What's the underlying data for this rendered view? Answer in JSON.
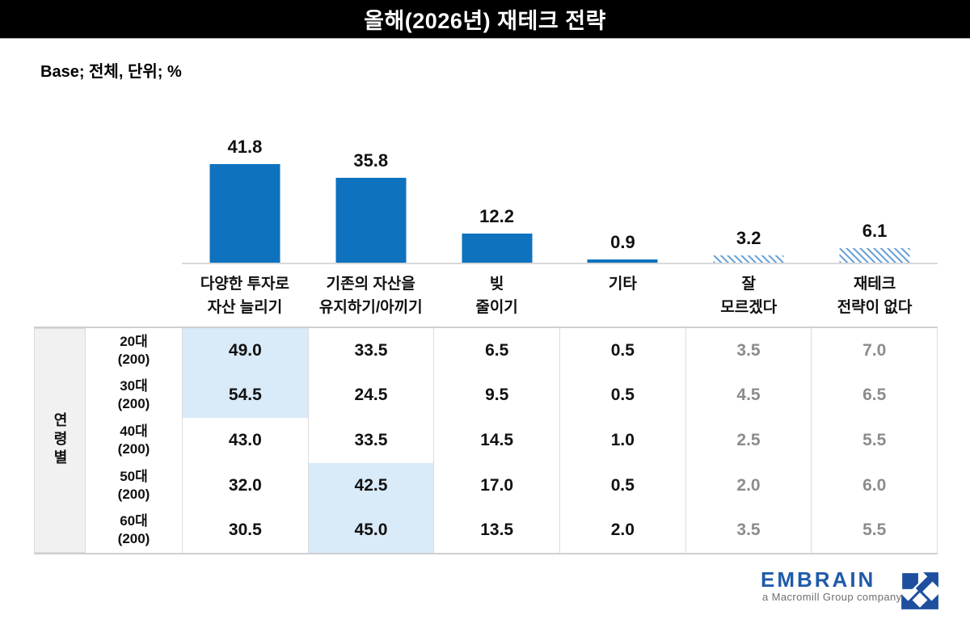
{
  "title": "올해(2026년) 재테크 전략",
  "base_note": "Base; 전체, 단위; %",
  "colors": {
    "bar": "#0e72be",
    "hatch_stripe": "#6fa3d6",
    "highlight_cell": "#d9eaf8",
    "muted_text": "#8c8c8c",
    "brand_blue": "#1f5ba9",
    "title_bar_bg": "#000000"
  },
  "chart_data": {
    "type": "bar",
    "title": "올해(2026년) 재테크 전략",
    "unit": "%",
    "base": "전체",
    "grid": false,
    "ylim": [
      0,
      50
    ],
    "categories": [
      "다양한 투자로\n자산 늘리기",
      "기존의 자산을\n유지하기/아끼기",
      "빚\n줄이기",
      "기타",
      "잘\n모르겠다",
      "재테크\n전략이 없다"
    ],
    "values": [
      41.8,
      35.8,
      12.2,
      0.9,
      3.2,
      6.1
    ],
    "hatched": [
      false,
      false,
      false,
      false,
      true,
      true
    ],
    "breakdown": {
      "group_label": "연령별",
      "muted_columns": [
        4,
        5
      ],
      "rows": [
        {
          "label": "20대",
          "base": "(200)",
          "values": [
            "49.0",
            "33.5",
            "6.5",
            "0.5",
            "3.5",
            "7.0"
          ],
          "highlight_cols": [
            0
          ]
        },
        {
          "label": "30대",
          "base": "(200)",
          "values": [
            "54.5",
            "24.5",
            "9.5",
            "0.5",
            "4.5",
            "6.5"
          ],
          "highlight_cols": [
            0
          ]
        },
        {
          "label": "40대",
          "base": "(200)",
          "values": [
            "43.0",
            "33.5",
            "14.5",
            "1.0",
            "2.5",
            "5.5"
          ],
          "highlight_cols": []
        },
        {
          "label": "50대",
          "base": "(200)",
          "values": [
            "32.0",
            "42.5",
            "17.0",
            "0.5",
            "2.0",
            "6.0"
          ],
          "highlight_cols": [
            1
          ]
        },
        {
          "label": "60대",
          "base": "(200)",
          "values": [
            "30.5",
            "45.0",
            "13.5",
            "2.0",
            "3.5",
            "5.5"
          ],
          "highlight_cols": [
            1
          ]
        }
      ]
    }
  },
  "footer": {
    "brand": "EMBRAIN",
    "brand_sub": "a Macromill Group company"
  }
}
